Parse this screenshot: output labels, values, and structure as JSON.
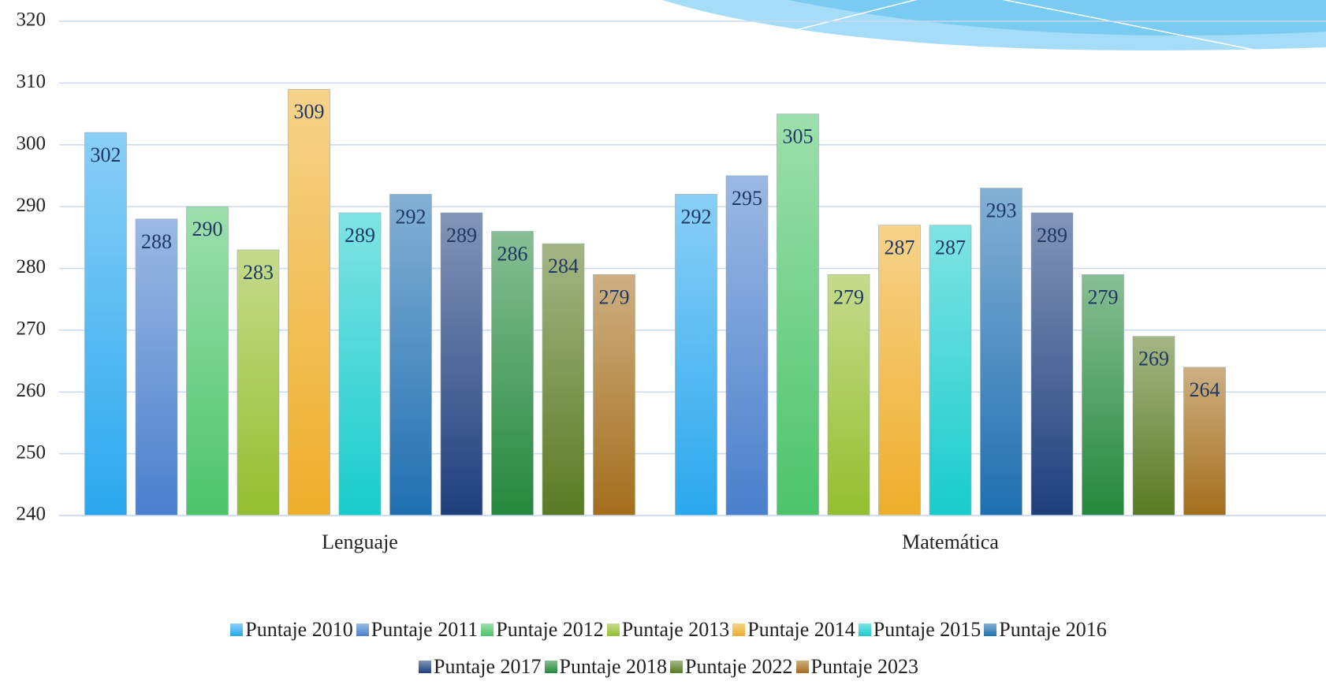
{
  "chart_data": {
    "type": "bar",
    "categories": [
      "Lenguaje",
      "Matemática"
    ],
    "series": [
      {
        "name": "Puntaje 2010",
        "color": "#2aa8ee",
        "values": [
          302,
          292
        ]
      },
      {
        "name": "Puntaje 2011",
        "color": "#4a7fcc",
        "values": [
          288,
          295
        ]
      },
      {
        "name": "Puntaje 2012",
        "color": "#4cc46a",
        "values": [
          290,
          305
        ]
      },
      {
        "name": "Puntaje 2013",
        "color": "#95be2e",
        "values": [
          283,
          279
        ]
      },
      {
        "name": "Puntaje 2014",
        "color": "#eeae2a",
        "values": [
          309,
          287
        ]
      },
      {
        "name": "Puntaje 2015",
        "color": "#18cccc",
        "values": [
          289,
          287
        ]
      },
      {
        "name": "Puntaje 2016",
        "color": "#1f6fb0",
        "values": [
          292,
          293
        ]
      },
      {
        "name": "Puntaje 2017",
        "color": "#1e3f7c",
        "values": [
          289,
          289
        ]
      },
      {
        "name": "Puntaje 2018",
        "color": "#24883c",
        "values": [
          286,
          279
        ]
      },
      {
        "name": "Puntaje 2022",
        "color": "#5a7a22",
        "values": [
          284,
          269
        ]
      },
      {
        "name": "Puntaje 2023",
        "color": "#a46e1c",
        "values": [
          279,
          264
        ]
      }
    ],
    "ylim": [
      240,
      320
    ],
    "yticks": [
      240,
      250,
      260,
      270,
      280,
      290,
      300,
      310,
      320
    ],
    "grid": true,
    "legend": "bottom"
  }
}
